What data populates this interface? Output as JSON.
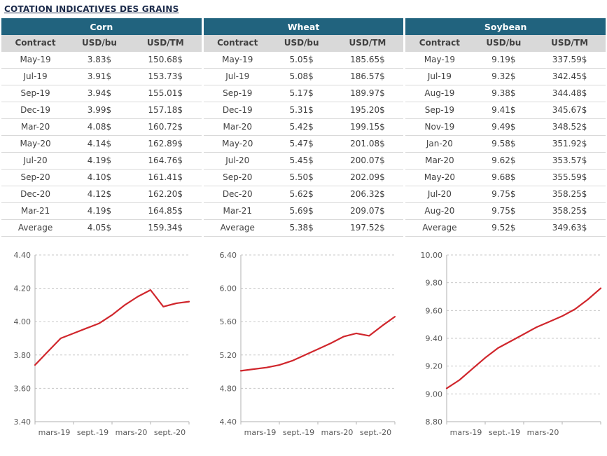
{
  "page": {
    "title": "COTATION INDICATIVES DES GRAINS"
  },
  "colors": {
    "group_header_bg": "#21637e",
    "sub_header_bg": "#d9d9d9",
    "line_red": "#d0262c",
    "grid_gray": "#c8c8c8",
    "axis_gray": "#b0b0b0"
  },
  "table": {
    "columns": [
      "Contract",
      "USD/bu",
      "USD/TM"
    ],
    "groups": [
      {
        "name": "Corn",
        "rows": [
          [
            "May-19",
            "3.83$",
            "150.68$"
          ],
          [
            "Jul-19",
            "3.91$",
            "153.73$"
          ],
          [
            "Sep-19",
            "3.94$",
            "155.01$"
          ],
          [
            "Dec-19",
            "3.99$",
            "157.18$"
          ],
          [
            "Mar-20",
            "4.08$",
            "160.72$"
          ],
          [
            "May-20",
            "4.14$",
            "162.89$"
          ],
          [
            "Jul-20",
            "4.19$",
            "164.76$"
          ],
          [
            "Sep-20",
            "4.10$",
            "161.41$"
          ],
          [
            "Dec-20",
            "4.12$",
            "162.20$"
          ],
          [
            "Mar-21",
            "4.19$",
            "164.85$"
          ]
        ],
        "average": [
          "Average",
          "4.05$",
          "159.34$"
        ]
      },
      {
        "name": "Wheat",
        "rows": [
          [
            "May-19",
            "5.05$",
            "185.65$"
          ],
          [
            "Jul-19",
            "5.08$",
            "186.57$"
          ],
          [
            "Sep-19",
            "5.17$",
            "189.97$"
          ],
          [
            "Dec-19",
            "5.31$",
            "195.20$"
          ],
          [
            "Mar-20",
            "5.42$",
            "199.15$"
          ],
          [
            "May-20",
            "5.47$",
            "201.08$"
          ],
          [
            "Jul-20",
            "5.45$",
            "200.07$"
          ],
          [
            "Sep-20",
            "5.50$",
            "202.09$"
          ],
          [
            "Dec-20",
            "5.62$",
            "206.32$"
          ],
          [
            "Mar-21",
            "5.69$",
            "209.07$"
          ]
        ],
        "average": [
          "Average",
          "5.38$",
          "197.52$"
        ]
      },
      {
        "name": "Soybean",
        "rows": [
          [
            "May-19",
            "9.19$",
            "337.59$"
          ],
          [
            "Jul-19",
            "9.32$",
            "342.45$"
          ],
          [
            "Aug-19",
            "9.38$",
            "344.48$"
          ],
          [
            "Sep-19",
            "9.41$",
            "345.67$"
          ],
          [
            "Nov-19",
            "9.49$",
            "348.52$"
          ],
          [
            "Jan-20",
            "9.58$",
            "351.92$"
          ],
          [
            "Mar-20",
            "9.62$",
            "353.57$"
          ],
          [
            "May-20",
            "9.68$",
            "355.59$"
          ],
          [
            "Jul-20",
            "9.75$",
            "358.25$"
          ],
          [
            "Aug-20",
            "9.75$",
            "358.25$"
          ]
        ],
        "average": [
          "Average",
          "9.52$",
          "349.63$"
        ]
      }
    ]
  },
  "chart_data": [
    {
      "type": "line",
      "name": "corn",
      "title": "",
      "xlabel": "",
      "ylabel": "",
      "x_labels": [
        "mars-19",
        "sept.-19",
        "mars-20",
        "sept.-20"
      ],
      "y_ticks": [
        3.4,
        3.6,
        3.8,
        4.0,
        4.2,
        4.4
      ],
      "ylim": [
        3.4,
        4.4
      ],
      "values": [
        3.74,
        3.82,
        3.9,
        3.93,
        3.96,
        3.99,
        4.04,
        4.1,
        4.15,
        4.19,
        4.09,
        4.11,
        4.12
      ],
      "line_color": "#d0262c",
      "grid": "dashed",
      "legend": "none"
    },
    {
      "type": "line",
      "name": "wheat",
      "title": "",
      "xlabel": "",
      "ylabel": "",
      "x_labels": [
        "mars-19",
        "sept.-19",
        "mars-20",
        "sept.-20"
      ],
      "y_ticks": [
        4.4,
        4.8,
        5.2,
        5.6,
        6.0,
        6.4
      ],
      "ylim": [
        4.4,
        6.4
      ],
      "values": [
        5.01,
        5.03,
        5.05,
        5.08,
        5.13,
        5.2,
        5.27,
        5.34,
        5.42,
        5.46,
        5.43,
        5.55,
        5.66
      ],
      "line_color": "#d0262c",
      "grid": "dashed",
      "legend": "none"
    },
    {
      "type": "line",
      "name": "soybean",
      "title": "",
      "xlabel": "",
      "ylabel": "",
      "x_labels": [
        "mars-19",
        "sept.-19",
        "mars-20"
      ],
      "y_ticks": [
        8.8,
        9.0,
        9.2,
        9.4,
        9.6,
        9.8,
        10.0
      ],
      "ylim": [
        8.8,
        10.0
      ],
      "values": [
        9.04,
        9.1,
        9.18,
        9.26,
        9.33,
        9.38,
        9.43,
        9.48,
        9.52,
        9.56,
        9.61,
        9.68,
        9.76
      ],
      "line_color": "#d0262c",
      "grid": "dashed",
      "legend": "none"
    }
  ]
}
